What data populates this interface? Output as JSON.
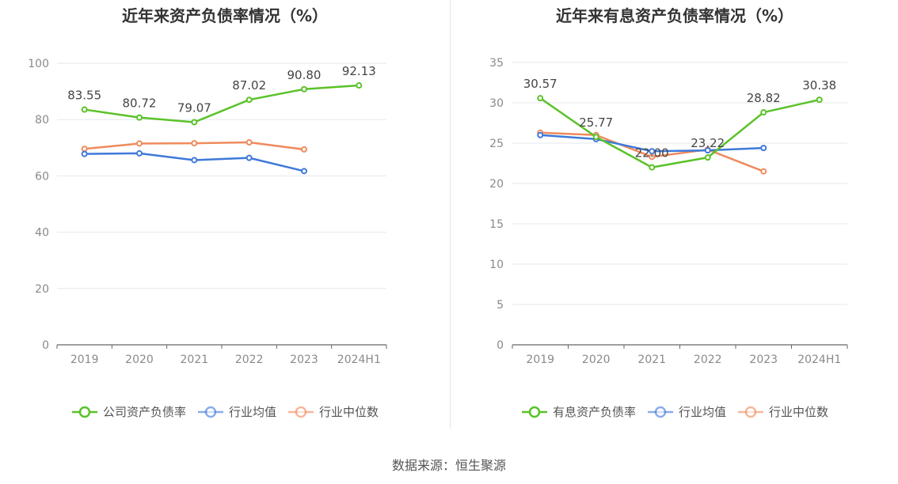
{
  "footer": "数据来源：恒生聚源",
  "colors": {
    "company": "#5ac229",
    "avg": "#3e79da",
    "median": "#f08a5d"
  },
  "chart_data": [
    {
      "type": "line",
      "title": "近年来资产负债率情况（%）",
      "categories": [
        "2019",
        "2020",
        "2021",
        "2022",
        "2023",
        "2024H1"
      ],
      "ylim": [
        0,
        100
      ],
      "yticks": [
        0,
        20,
        40,
        60,
        80,
        100
      ],
      "grid": true,
      "legend_position": "bottom",
      "series": [
        {
          "key": "company",
          "name": "公司资产负债率",
          "values": [
            83.55,
            80.72,
            79.07,
            87.02,
            90.8,
            92.13
          ],
          "labels": [
            "83.55",
            "80.72",
            "79.07",
            "87.02",
            "90.80",
            "92.13"
          ]
        },
        {
          "key": "avg",
          "name": "行业均值",
          "values": [
            67.8,
            68.0,
            65.6,
            66.4,
            61.7,
            null
          ]
        },
        {
          "key": "median",
          "name": "行业中位数",
          "values": [
            69.6,
            71.5,
            71.6,
            71.9,
            69.4,
            null
          ]
        }
      ]
    },
    {
      "type": "line",
      "title": "近年来有息资产负债率情况（%）",
      "categories": [
        "2019",
        "2020",
        "2021",
        "2022",
        "2023",
        "2024H1"
      ],
      "ylim": [
        0,
        35
      ],
      "yticks": [
        0,
        5,
        10,
        15,
        20,
        25,
        30,
        35
      ],
      "grid": true,
      "legend_position": "bottom",
      "series": [
        {
          "key": "company",
          "name": "有息资产负债率",
          "values": [
            30.57,
            25.77,
            22.0,
            23.22,
            28.82,
            30.38
          ],
          "labels": [
            "30.57",
            "25.77",
            "22.00",
            "23.22",
            "28.82",
            "30.38"
          ]
        },
        {
          "key": "avg",
          "name": "行业均值",
          "values": [
            26.0,
            25.5,
            24.0,
            24.1,
            24.4,
            null
          ]
        },
        {
          "key": "median",
          "name": "行业中位数",
          "values": [
            26.3,
            26.0,
            23.3,
            24.2,
            21.5,
            null
          ]
        }
      ]
    }
  ]
}
